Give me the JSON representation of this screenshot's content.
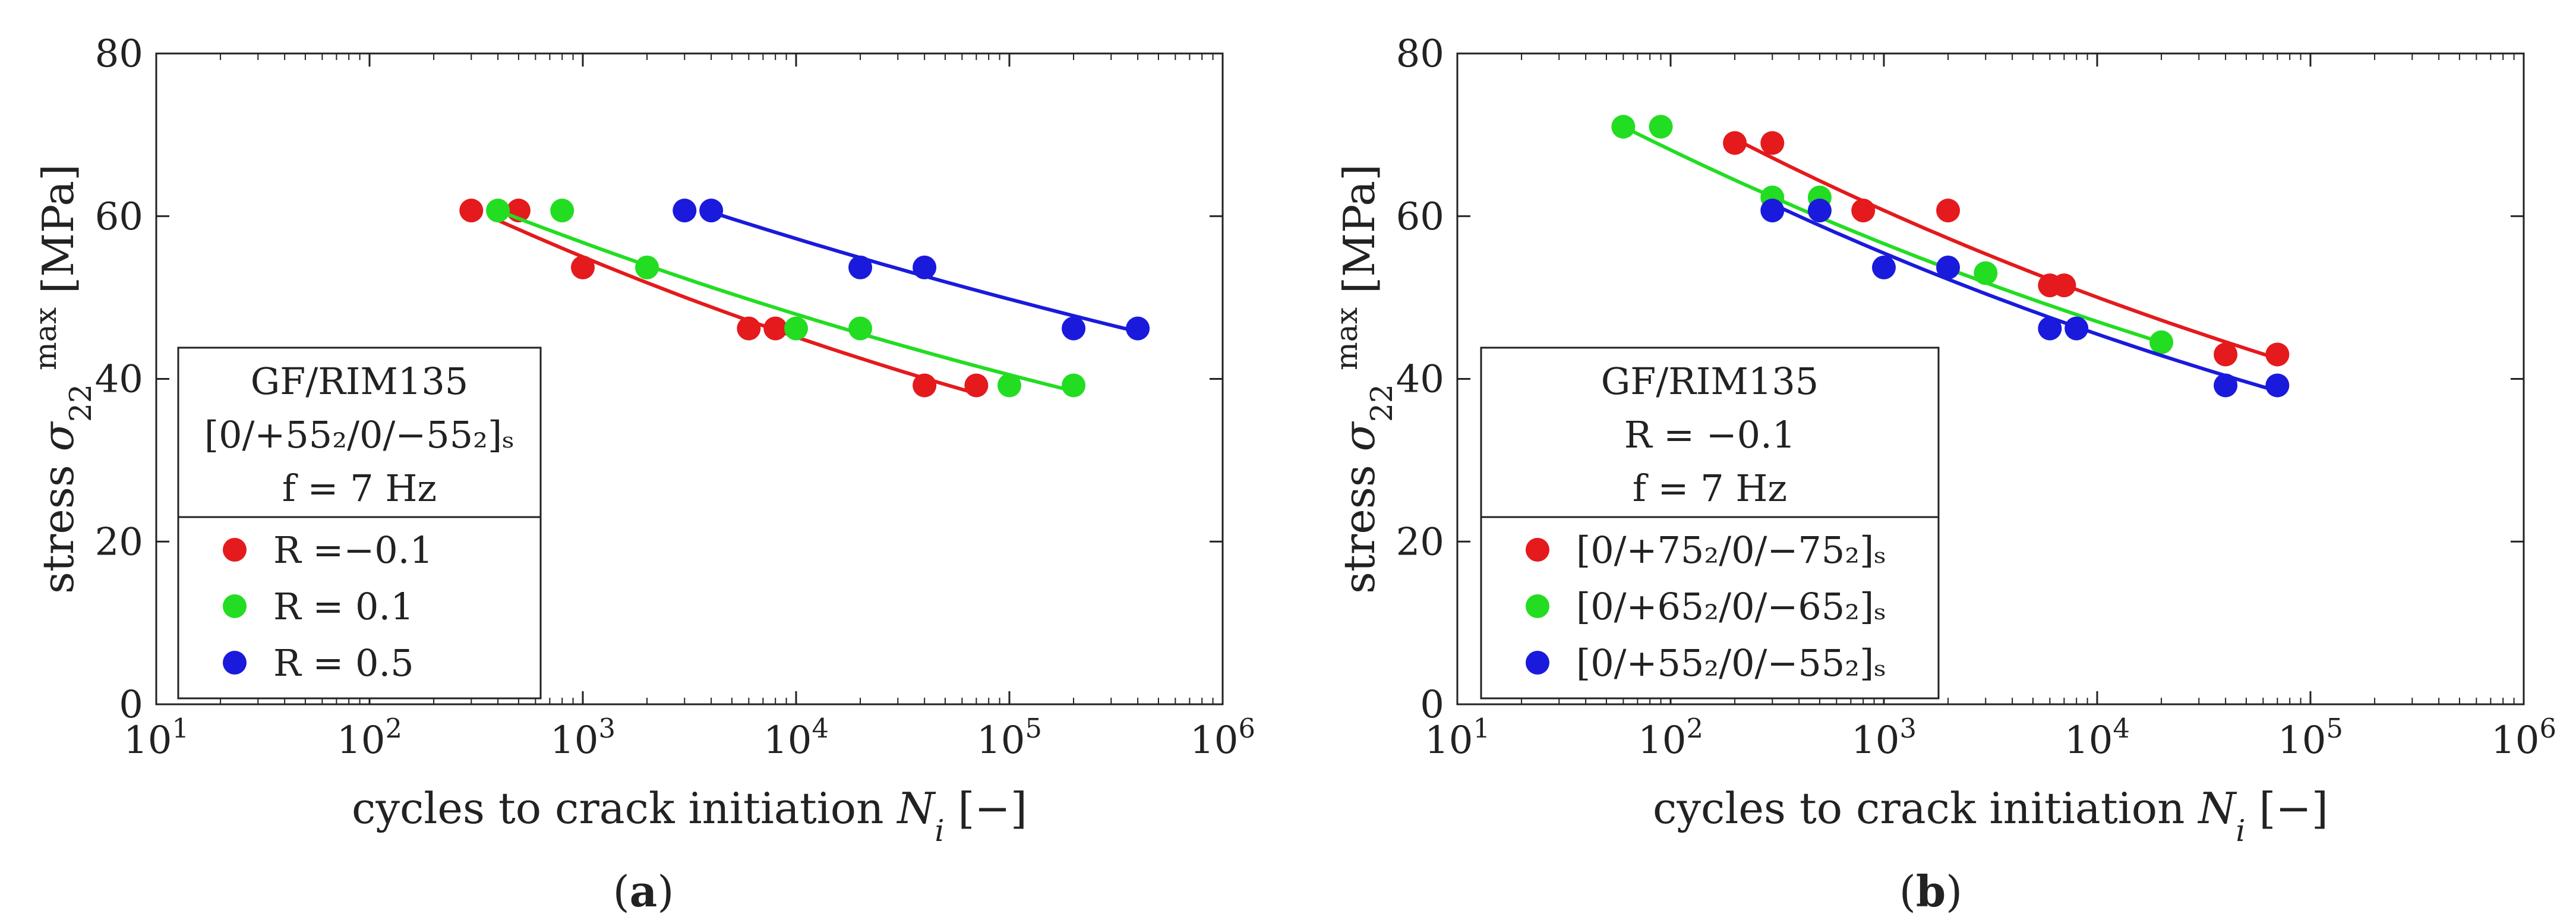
{
  "chart_data": [
    {
      "type": "scatter",
      "panel_label": "(a)",
      "xlabel": "cycles to crack initiation N_i [−]",
      "ylabel": "stress σ_22^max [MPa]",
      "xscale": "log",
      "xlim": [
        10,
        1000000
      ],
      "ylim": [
        0,
        80
      ],
      "xtick_exponents": [
        1,
        2,
        3,
        4,
        5,
        6
      ],
      "yticks": [
        0,
        20,
        40,
        60,
        80
      ],
      "legend_title": [
        "GF/RIM135",
        "[0/+55₂/0/−55₂]ₛ",
        "f = 7 Hz"
      ],
      "legend_location": "left",
      "series": [
        {
          "name": "R =−0.1",
          "color": "#e41a1c",
          "x": [
            300,
            500,
            1000,
            6000,
            8000,
            40000,
            70000
          ],
          "y": [
            60.7,
            60.7,
            53.7,
            46.2,
            46.2,
            39.2,
            39.2
          ],
          "fit_x": [
            400,
            70000
          ],
          "fit_y": [
            59.5,
            38.2
          ]
        },
        {
          "name": "R = 0.1",
          "color": "#22dd22",
          "x": [
            400,
            800,
            2000,
            10000,
            20000,
            100000,
            200000
          ],
          "y": [
            60.7,
            60.7,
            53.7,
            46.2,
            46.2,
            39.2,
            39.2
          ],
          "fit_x": [
            400,
            200000
          ],
          "fit_y": [
            60.7,
            38.5
          ]
        },
        {
          "name": "R = 0.5",
          "color": "#1a1adc",
          "x": [
            3000,
            4000,
            20000,
            40000,
            200000,
            400000
          ],
          "y": [
            60.7,
            60.7,
            53.7,
            53.7,
            46.2,
            46.2
          ],
          "fit_x": [
            4000,
            400000
          ],
          "fit_y": [
            60.5,
            45.8
          ]
        }
      ]
    },
    {
      "type": "scatter",
      "panel_label": "(b)",
      "xlabel": "cycles to crack initiation N_i [−]",
      "ylabel": "stress σ_22^max [MPa]",
      "xscale": "log",
      "xlim": [
        10,
        1000000
      ],
      "ylim": [
        0,
        80
      ],
      "xtick_exponents": [
        1,
        2,
        3,
        4,
        5,
        6
      ],
      "yticks": [
        0,
        20,
        40,
        60,
        80
      ],
      "legend_title": [
        "GF/RIM135",
        "R = −0.1",
        "f = 7 Hz"
      ],
      "legend_location": "left",
      "series": [
        {
          "name": "[0/+75₂/0/−75₂]ₛ",
          "color": "#e41a1c",
          "x": [
            200,
            300,
            800,
            2000,
            6000,
            7000,
            40000,
            70000
          ],
          "y": [
            69,
            69,
            60.7,
            60.7,
            51.5,
            51.5,
            43,
            43
          ],
          "fit_x": [
            200,
            70000
          ],
          "fit_y": [
            69.5,
            42.5
          ]
        },
        {
          "name": "[0/+65₂/0/−65₂]ₛ",
          "color": "#22dd22",
          "x": [
            60,
            90,
            300,
            500,
            3000,
            20000
          ],
          "y": [
            71,
            71,
            62.3,
            62.3,
            53,
            44.5
          ],
          "fit_x": [
            60,
            20000
          ],
          "fit_y": [
            71,
            44.5
          ]
        },
        {
          "name": "[0/+55₂/0/−55₂]ₛ",
          "color": "#1a1adc",
          "x": [
            300,
            500,
            1000,
            2000,
            6000,
            8000,
            40000,
            70000
          ],
          "y": [
            60.7,
            60.7,
            53.7,
            53.7,
            46.2,
            46.2,
            39.2,
            39.2
          ],
          "fit_x": [
            300,
            70000
          ],
          "fit_y": [
            61.5,
            38.5
          ]
        }
      ]
    }
  ]
}
